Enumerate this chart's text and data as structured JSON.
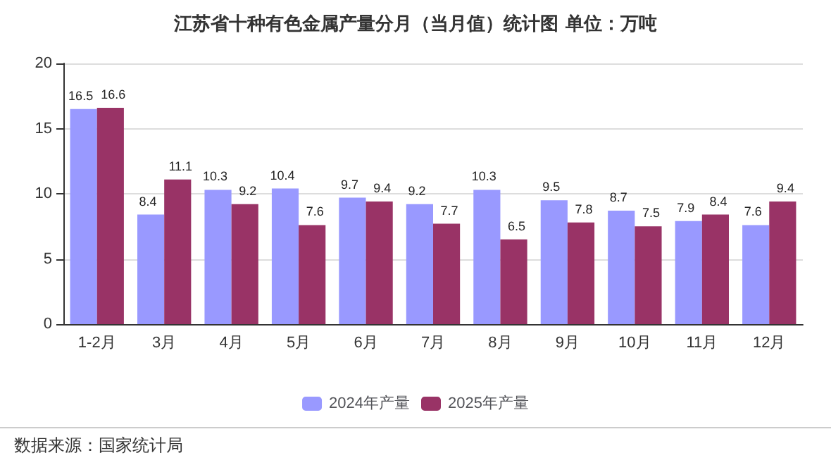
{
  "chart_data": {
    "type": "bar",
    "title": "江苏省十种有色金属产量分月（当月值）统计图 单位：万吨",
    "categories": [
      "1-2月",
      "3月",
      "4月",
      "5月",
      "6月",
      "7月",
      "8月",
      "9月",
      "10月",
      "11月",
      "12月"
    ],
    "series": [
      {
        "name": "2024年产量",
        "color": "#9999ff",
        "values": [
          16.5,
          8.4,
          10.3,
          10.4,
          9.7,
          9.2,
          10.3,
          9.5,
          8.7,
          7.9,
          7.6
        ]
      },
      {
        "name": "2025年产量",
        "color": "#993366",
        "values": [
          16.6,
          11.1,
          9.2,
          7.6,
          9.4,
          7.7,
          6.5,
          7.8,
          7.5,
          8.4,
          9.4
        ]
      }
    ],
    "ylim": [
      0,
      20
    ],
    "yticks": [
      0,
      5,
      10,
      15,
      20
    ],
    "grid": "y",
    "legend": "bottom",
    "data_labels": true,
    "annotations": [
      "数据来源：国家统计局"
    ]
  }
}
